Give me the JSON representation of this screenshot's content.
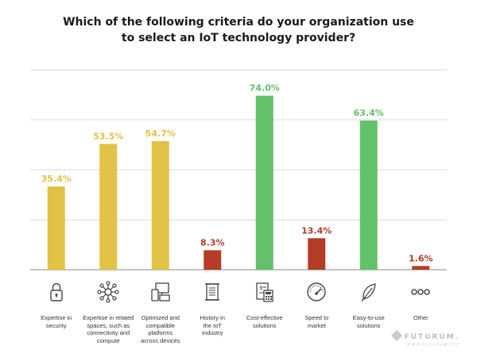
{
  "title_line1": "Which of the following criteria do your organization use",
  "title_line2": "to select an IoT technology provider?",
  "colors": {
    "yellow": "#e2c244",
    "green": "#63c06b",
    "red": "#b53c27",
    "grid": "#d9d9d9",
    "axis": "#888888"
  },
  "chart_data": {
    "type": "bar",
    "categories": [
      "Expertise in security",
      "Expertise in related spaces, such as connectivity and compute",
      "Optimized and compatible platforms across devices",
      "History in the IoT industry",
      "Cost-effective solutions",
      "Speed to market",
      "Easy-to-use solutions",
      "Other"
    ],
    "values": [
      35.4,
      53.5,
      54.7,
      8.3,
      74.0,
      13.4,
      63.4,
      1.6
    ],
    "value_labels": [
      "35.4%",
      "53.5%",
      "54.7%",
      "8.3%",
      "74.0%",
      "13.4%",
      "63.4%",
      "1.6%"
    ],
    "bar_colors": [
      "yellow",
      "yellow",
      "yellow",
      "red",
      "green",
      "red",
      "green",
      "red"
    ],
    "ylim": [
      0,
      85
    ],
    "grid": true,
    "title": "Which of the following criteria do your organization use to select an IoT technology provider?"
  },
  "category_lines": [
    [
      "Expertise in",
      "security"
    ],
    [
      "Expertise in related",
      "spaces, such as",
      "connectivity and",
      "compute"
    ],
    [
      "Optimized and",
      "compatible",
      "platforms",
      "across devices"
    ],
    [
      "History in",
      "the IoT",
      "industry"
    ],
    [
      "Cost-effective",
      "solutions"
    ],
    [
      "Speed to",
      "market"
    ],
    [
      "Easy-to-use",
      "solutions"
    ],
    [
      "Other"
    ]
  ],
  "icons": [
    "lock-icon",
    "network-nodes-icon",
    "devices-icon",
    "scroll-icon",
    "invoice-calculator-icon",
    "speedometer-icon",
    "feather-icon",
    "more-dots-icon"
  ],
  "logo": {
    "brand": "FUTURUM.",
    "url": "WWW.FUTURUM.XYZ"
  }
}
